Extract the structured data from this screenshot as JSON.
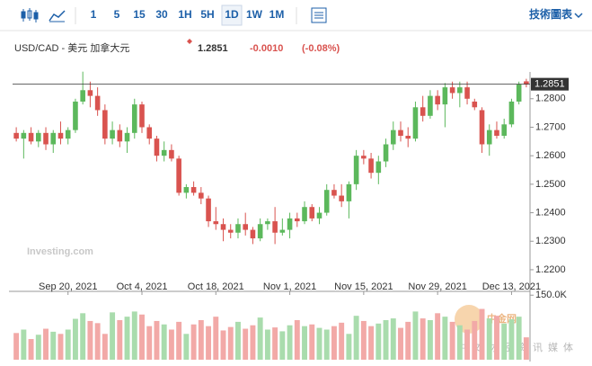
{
  "toolbar": {
    "intervals": [
      "1",
      "5",
      "15",
      "30",
      "1H",
      "5H",
      "1D",
      "1W",
      "1M"
    ],
    "selected": "1D",
    "tech_chart": "技術圖表"
  },
  "watermarks": {
    "brand": "Investing.com",
    "site": "中金网",
    "site_sub": "中文财经资讯媒体"
  },
  "chart_data": {
    "type": "candlestick",
    "title": "USD/CAD - 美元 加拿大元",
    "last_price": {
      "value": 1.2851,
      "label": "1.2851"
    },
    "change": "-0.0010",
    "change_pct": "(-0.08%)",
    "up_color": "#5cb85c",
    "down_color": "#d9534f",
    "volume_up_color": "#a9dcad",
    "volume_down_color": "#f2a9a7",
    "categories": [
      null,
      null,
      null,
      null,
      null,
      null,
      null,
      "Sep 20, 2021",
      null,
      null,
      null,
      null,
      null,
      null,
      null,
      null,
      null,
      "Oct 4, 2021",
      null,
      null,
      null,
      null,
      null,
      null,
      null,
      null,
      null,
      "Oct 18, 2021",
      null,
      null,
      null,
      null,
      null,
      null,
      null,
      null,
      null,
      "Nov 1, 2021",
      null,
      null,
      null,
      null,
      null,
      null,
      null,
      null,
      null,
      "Nov 15, 2021",
      null,
      null,
      null,
      null,
      null,
      null,
      null,
      null,
      null,
      "Nov 29, 2021",
      null,
      null,
      null,
      null,
      null,
      null,
      null,
      null,
      null,
      "Dec 13, 2021",
      null,
      null
    ],
    "open": [
      1.268,
      1.266,
      1.268,
      1.265,
      1.268,
      1.264,
      1.268,
      1.266,
      1.269,
      1.279,
      1.283,
      1.281,
      1.276,
      1.266,
      1.269,
      1.265,
      1.268,
      1.278,
      1.27,
      1.266,
      1.26,
      1.262,
      1.259,
      1.247,
      1.249,
      1.247,
      1.245,
      1.237,
      1.236,
      1.234,
      1.233,
      1.236,
      1.234,
      1.231,
      1.236,
      1.237,
      1.233,
      1.234,
      1.238,
      1.237,
      1.242,
      1.238,
      1.24,
      1.248,
      1.246,
      1.244,
      1.25,
      1.26,
      1.259,
      1.254,
      1.258,
      1.264,
      1.269,
      1.267,
      1.266,
      1.277,
      1.274,
      1.281,
      1.278,
      1.284,
      1.282,
      1.284,
      1.279,
      1.276,
      1.264,
      1.269,
      1.267,
      1.271,
      1.279,
      1.2861
    ],
    "high": [
      1.27,
      1.269,
      1.27,
      1.269,
      1.27,
      1.269,
      1.272,
      1.27,
      1.28,
      1.2895,
      1.286,
      1.284,
      1.278,
      1.272,
      1.271,
      1.27,
      1.28,
      1.279,
      1.271,
      1.267,
      1.265,
      1.264,
      1.26,
      1.25,
      1.251,
      1.249,
      1.246,
      1.242,
      1.238,
      1.236,
      1.238,
      1.24,
      1.235,
      1.238,
      1.238,
      1.242,
      1.238,
      1.24,
      1.24,
      1.244,
      1.243,
      1.242,
      1.25,
      1.25,
      1.25,
      1.251,
      1.262,
      1.262,
      1.261,
      1.26,
      1.266,
      1.272,
      1.272,
      1.27,
      1.279,
      1.281,
      1.283,
      1.283,
      1.2855,
      1.286,
      1.286,
      1.286,
      1.28,
      1.277,
      1.271,
      1.272,
      1.273,
      1.28,
      1.286,
      1.287
    ],
    "low": [
      1.265,
      1.259,
      1.264,
      1.263,
      1.262,
      1.261,
      1.264,
      1.264,
      1.268,
      1.278,
      1.277,
      1.274,
      1.264,
      1.264,
      1.263,
      1.261,
      1.266,
      1.268,
      1.264,
      1.258,
      1.258,
      1.258,
      1.246,
      1.245,
      1.246,
      1.243,
      1.235,
      1.234,
      1.23,
      1.231,
      1.231,
      1.232,
      1.229,
      1.23,
      1.234,
      1.229,
      1.232,
      1.231,
      1.235,
      1.236,
      1.237,
      1.236,
      1.239,
      1.245,
      1.242,
      1.238,
      1.248,
      1.257,
      1.252,
      1.25,
      1.256,
      1.262,
      1.265,
      1.263,
      1.265,
      1.272,
      1.273,
      1.276,
      1.27,
      1.28,
      1.277,
      1.278,
      1.276,
      1.261,
      1.26,
      1.266,
      1.266,
      1.27,
      1.278,
      1.284
    ],
    "close": [
      1.266,
      1.268,
      1.265,
      1.268,
      1.264,
      1.268,
      1.266,
      1.269,
      1.279,
      1.283,
      1.281,
      1.276,
      1.266,
      1.269,
      1.265,
      1.268,
      1.278,
      1.27,
      1.266,
      1.26,
      1.262,
      1.259,
      1.247,
      1.249,
      1.247,
      1.245,
      1.237,
      1.236,
      1.234,
      1.233,
      1.236,
      1.234,
      1.231,
      1.236,
      1.237,
      1.233,
      1.234,
      1.238,
      1.237,
      1.242,
      1.238,
      1.24,
      1.248,
      1.246,
      1.244,
      1.25,
      1.26,
      1.259,
      1.254,
      1.258,
      1.264,
      1.269,
      1.267,
      1.266,
      1.277,
      1.274,
      1.281,
      1.278,
      1.284,
      1.282,
      1.284,
      1.28,
      1.277,
      1.264,
      1.269,
      1.267,
      1.271,
      1.279,
      1.285,
      1.2851
    ],
    "volume": [
      62000,
      70000,
      48000,
      58000,
      72000,
      65000,
      60000,
      70000,
      95000,
      108000,
      90000,
      85000,
      60000,
      110000,
      92000,
      100000,
      112000,
      105000,
      78000,
      90000,
      82000,
      70000,
      88000,
      60000,
      82000,
      92000,
      78000,
      100000,
      68000,
      76000,
      88000,
      72000,
      80000,
      98000,
      70000,
      75000,
      66000,
      80000,
      92000,
      78000,
      82000,
      74000,
      70000,
      78000,
      86000,
      60000,
      102000,
      90000,
      78000,
      84000,
      92000,
      96000,
      74000,
      88000,
      112000,
      96000,
      92000,
      108000,
      100000,
      88000,
      80000,
      70000,
      90000,
      118000,
      96000,
      102000,
      84000,
      94000,
      100000,
      52000
    ],
    "ylim": [
      1.2143,
      1.2894
    ],
    "yticks": [
      {
        "value": 1.22,
        "label": "1.2200"
      },
      {
        "value": 1.23,
        "label": "1.2300"
      },
      {
        "value": 1.24,
        "label": "1.2400"
      },
      {
        "value": 1.25,
        "label": "1.2500"
      },
      {
        "value": 1.26,
        "label": "1.2600"
      },
      {
        "value": 1.27,
        "label": "1.2700"
      },
      {
        "value": 1.28,
        "label": "1.2800"
      }
    ],
    "y2lim": [
      0,
      163000
    ],
    "y2ticks": [
      {
        "value": 150000,
        "label": "150.0K"
      }
    ]
  }
}
